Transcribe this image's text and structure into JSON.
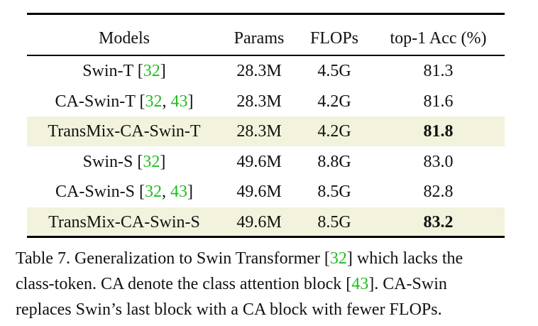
{
  "table": {
    "headers": {
      "models": "Models",
      "params": "Params",
      "flops": "FLOPs",
      "acc": "top-1 Acc (%)"
    },
    "rows": [
      {
        "model": "Swin-T",
        "cites": [
          "32"
        ],
        "params": "28.3M",
        "flops": "4.5G",
        "acc": "81.3",
        "highlight": false,
        "bold": false
      },
      {
        "model": "CA-Swin-T",
        "cites": [
          "32",
          "43"
        ],
        "params": "28.3M",
        "flops": "4.2G",
        "acc": "81.6",
        "highlight": false,
        "bold": false
      },
      {
        "model": "TransMix-CA-Swin-T",
        "cites": [],
        "params": "28.3M",
        "flops": "4.2G",
        "acc": "81.8",
        "highlight": true,
        "bold": true
      },
      {
        "model": "Swin-S",
        "cites": [
          "32"
        ],
        "params": "49.6M",
        "flops": "8.8G",
        "acc": "83.0",
        "highlight": false,
        "bold": false
      },
      {
        "model": "CA-Swin-S",
        "cites": [
          "32",
          "43"
        ],
        "params": "49.6M",
        "flops": "8.5G",
        "acc": "82.8",
        "highlight": false,
        "bold": false
      },
      {
        "model": "TransMix-CA-Swin-S",
        "cites": [],
        "params": "49.6M",
        "flops": "8.5G",
        "acc": "83.2",
        "highlight": true,
        "bold": true
      }
    ]
  },
  "caption": {
    "line1_a": "Table 7. Generalization to Swin Transformer [",
    "line1_cite": "32",
    "line1_b": "] which lacks the",
    "line2_a": "class-token.  CA denote the class attention block [",
    "line2_cite": "43",
    "line2_b": "].  CA-Swin",
    "line3": "replaces Swin’s last block with a CA block with fewer FLOPs."
  },
  "colors": {
    "highlight_bg": "#f3f3dd",
    "citation": "#22bb22"
  }
}
